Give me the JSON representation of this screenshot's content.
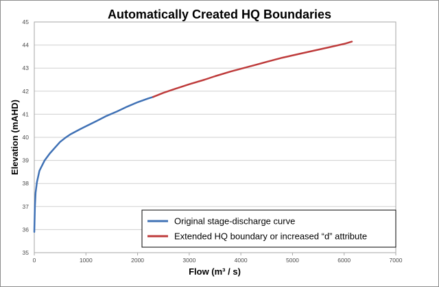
{
  "chart_data": {
    "type": "line",
    "title": "Automatically Created HQ Boundaries",
    "xlabel": "Flow (m³ / s)",
    "ylabel": "Elevation (mAHD)",
    "xlim": [
      0,
      7000
    ],
    "ylim": [
      35,
      45
    ],
    "x_ticks": [
      "0",
      "1000",
      "2000",
      "3000",
      "4000",
      "5000",
      "6000",
      "7000"
    ],
    "y_ticks": [
      "35",
      "36",
      "37",
      "38",
      "39",
      "40",
      "41",
      "42",
      "43",
      "44",
      "45"
    ],
    "grid": "horizontal",
    "legend_position": "bottom-right",
    "series": [
      {
        "name": "Original stage-discharge curve",
        "color": "#3f71b5",
        "points": [
          [
            0,
            35.9
          ],
          [
            5,
            36.4
          ],
          [
            12,
            37.0
          ],
          [
            25,
            37.6
          ],
          [
            50,
            38.05
          ],
          [
            100,
            38.55
          ],
          [
            200,
            39.0
          ],
          [
            300,
            39.3
          ],
          [
            400,
            39.55
          ],
          [
            500,
            39.8
          ],
          [
            600,
            39.98
          ],
          [
            700,
            40.13
          ],
          [
            800,
            40.25
          ],
          [
            900,
            40.37
          ],
          [
            1000,
            40.48
          ],
          [
            1200,
            40.7
          ],
          [
            1400,
            40.93
          ],
          [
            1600,
            41.12
          ],
          [
            1800,
            41.33
          ],
          [
            2000,
            41.52
          ],
          [
            2200,
            41.68
          ],
          [
            2300,
            41.75
          ]
        ]
      },
      {
        "name": "Extended HQ boundary or increased “d” attribute",
        "color": "#be3b3b",
        "points": [
          [
            2300,
            41.75
          ],
          [
            2500,
            41.93
          ],
          [
            2700,
            42.08
          ],
          [
            3000,
            42.3
          ],
          [
            3300,
            42.5
          ],
          [
            3500,
            42.65
          ],
          [
            3800,
            42.85
          ],
          [
            4000,
            42.97
          ],
          [
            4300,
            43.15
          ],
          [
            4500,
            43.27
          ],
          [
            4800,
            43.45
          ],
          [
            5100,
            43.6
          ],
          [
            5400,
            43.75
          ],
          [
            5700,
            43.9
          ],
          [
            6000,
            44.05
          ],
          [
            6150,
            44.15
          ]
        ]
      }
    ]
  }
}
